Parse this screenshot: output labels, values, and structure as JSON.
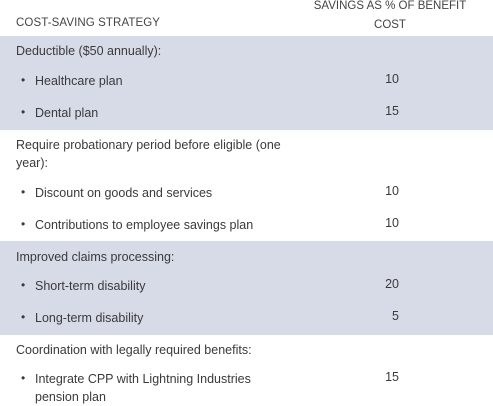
{
  "header": {
    "strategy_label": "COST-SAVING STRATEGY",
    "savings_line1": "SAVINGS AS % OF BENEFIT",
    "savings_line2": "COST"
  },
  "bullet_glyph": "•",
  "rows": {
    "deductible": "Deductible ($50 annually):",
    "healthcare_plan": "Healthcare plan",
    "healthcare_plan_value": "10",
    "dental_plan": "Dental plan",
    "dental_plan_value": "15",
    "probation_line1": "Require probationary period before eligible (one",
    "probation_line2": "year):",
    "discount": "Discount on goods and services",
    "discount_value": "10",
    "contributions": "Contributions to employee savings plan",
    "contributions_value": "10",
    "claims": "Improved claims processing:",
    "short_term": "Short-term disability",
    "short_term_value": "20",
    "long_term": "Long-term disability",
    "long_term_value": "5",
    "coordination": "Coordination with legally required benefits:",
    "integrate_line1": "Integrate CPP with Lightning Industries",
    "integrate_line2": "pension plan",
    "integrate_value": "15"
  },
  "colors": {
    "band": "#d7dbe8",
    "text": "#3a3a3a"
  }
}
